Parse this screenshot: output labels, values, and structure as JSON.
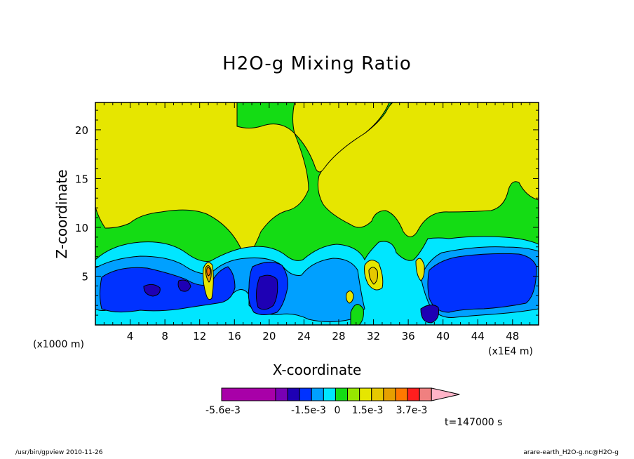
{
  "chart_data": {
    "type": "heatmap",
    "title": "H2O-g Mixing Ratio",
    "xlabel": "X-coordinate",
    "ylabel": "Z-coordinate",
    "x_unit_left": "(x1000 m)",
    "x_unit_right": "(x1E4 m)",
    "xlim": [
      0,
      51
    ],
    "ylim": [
      0,
      22.8
    ],
    "x_ticks": [
      "4",
      "8",
      "12",
      "16",
      "20",
      "24",
      "28",
      "32",
      "36",
      "40",
      "44",
      "48"
    ],
    "y_ticks": [
      "5",
      "10",
      "15",
      "20"
    ],
    "colorbar": {
      "colors": [
        "#a800a8",
        "#a800a8",
        "#7800b4",
        "#1e00b4",
        "#0032ff",
        "#00a0ff",
        "#00e6ff",
        "#14dc14",
        "#96e600",
        "#e6e600",
        "#e6c800",
        "#e6a000",
        "#ff7800",
        "#ff1e1e",
        "#f08080",
        "#ffb4c8"
      ],
      "labels": [
        "-5.6e-3",
        "-1.5e-3",
        "0",
        "1.5e-3",
        "3.7e-3"
      ]
    },
    "time_label": "t=147000 s",
    "grid": false,
    "legend": "colorbar-bottom"
  },
  "footer": {
    "left": "/usr/bin/gpview  2010-11-26",
    "right": "arare-earth_H2O-g.nc@H2O-g"
  }
}
